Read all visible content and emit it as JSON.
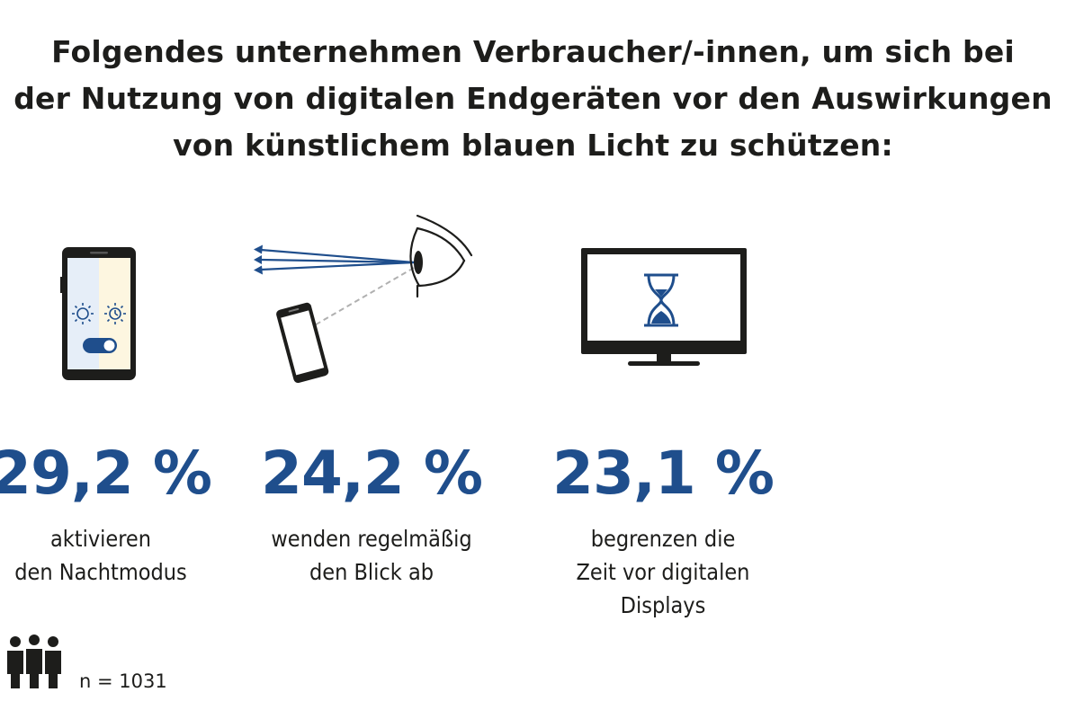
{
  "title": {
    "line1": "Folgendes unternehmen Verbraucher/-innen, um sich bei",
    "line2": "der Nutzung von digitalen Endgeräten vor den Auswirkungen",
    "line3": "von künstlichem blauen Licht zu schützen:"
  },
  "chart_data": {
    "type": "table",
    "title": "Folgendes unternehmen Verbraucher/-innen, um sich bei der Nutzung von digitalen Endgeräten vor den Auswirkungen von künstlichem blauen Licht zu schützen:",
    "unit": "%",
    "items": [
      {
        "value": 29.2,
        "display": "29,2 %",
        "label_lines": [
          "aktivieren",
          "den Nachtmodus"
        ],
        "icon": "smartphone-night-mode-icon"
      },
      {
        "value": 24.2,
        "display": "24,2 %",
        "label_lines": [
          "wenden regelmäßig",
          "den Blick ab"
        ],
        "icon": "eye-look-away-icon"
      },
      {
        "value": 23.1,
        "display": "23,1 %",
        "label_lines": [
          "begrenzen die",
          "Zeit vor digitalen",
          "Displays"
        ],
        "icon": "monitor-hourglass-icon"
      }
    ]
  },
  "footer": {
    "sample_size": "n = 1031",
    "icon": "people-group-icon"
  },
  "colors": {
    "accent": "#1f4e8c",
    "text": "#1d1d1b"
  }
}
